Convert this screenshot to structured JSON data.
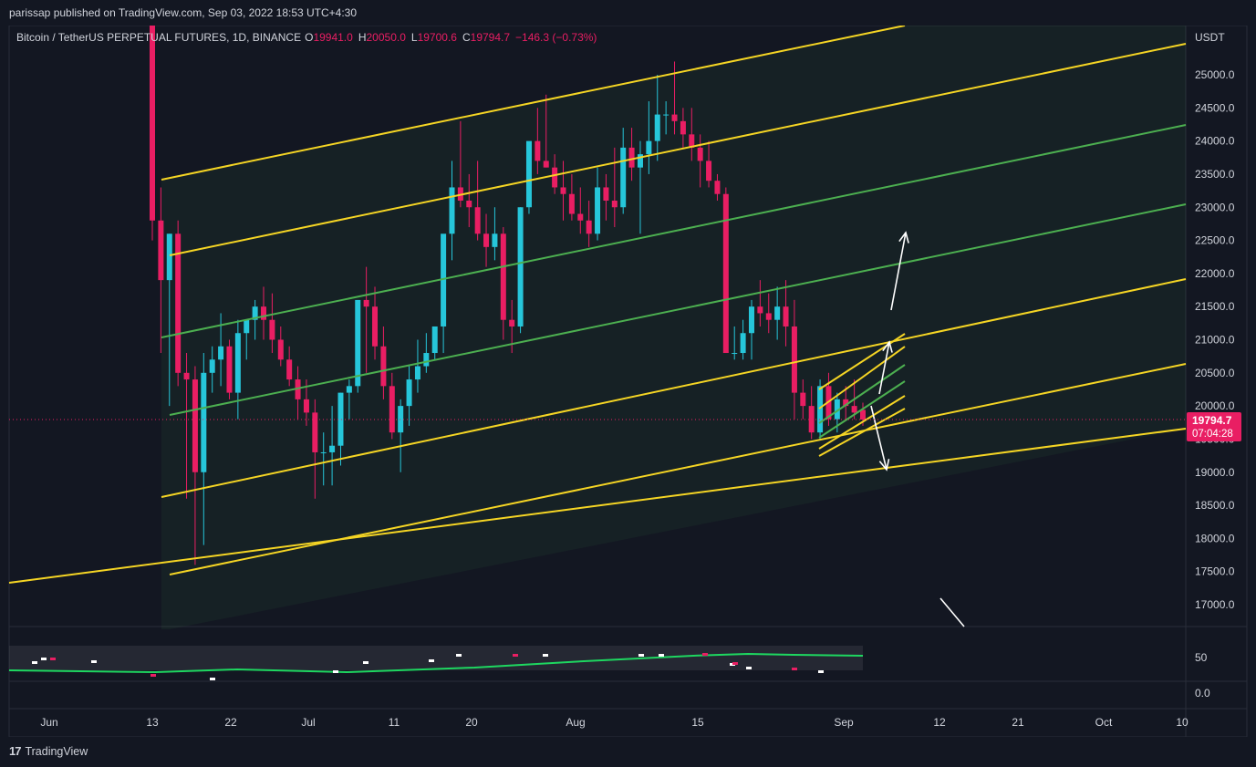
{
  "header": {
    "publisher_line": "parissap published on TradingView.com, Sep 03, 2022 18:53 UTC+4:30"
  },
  "legend": {
    "symbol": "Bitcoin / TetherUS PERPETUAL FUTURES, 1D, BINANCE",
    "o_label": "O",
    "o_value": "19941.0",
    "h_label": "H",
    "h_value": "20050.0",
    "l_label": "L",
    "l_value": "19700.6",
    "c_label": "C",
    "c_value": "19794.7",
    "change": "−146.3 (−0.73%)"
  },
  "price_axis": {
    "currency": "USDT",
    "last_price": "19794.7",
    "countdown": "07:04:28"
  },
  "indicator_axis": {
    "ticks": [
      "50",
      "0.0"
    ]
  },
  "footer": {
    "brand": "TradingView"
  },
  "colors": {
    "bull": "#26c6da",
    "bear": "#e91e63",
    "channel_yellow": "#f5d524",
    "channel_green": "#4caf50",
    "signal_green": "#1ed760",
    "background": "#131722"
  },
  "chart_data": {
    "type": "candlestick",
    "symbol": "BTCUSDT PERP",
    "timeframe": "1D",
    "y_range": [
      16800,
      26600
    ],
    "y_ticks": [
      17000,
      17500,
      18000,
      18500,
      19000,
      19500,
      20000,
      20500,
      21000,
      21500,
      22000,
      22500,
      23000,
      23500,
      24000,
      24500,
      25000
    ],
    "x_ticks": [
      "Jun",
      "13",
      "22",
      "Jul",
      "11",
      "20",
      "Aug",
      "15",
      "Sep",
      "12",
      "21",
      "Oct",
      "10"
    ],
    "candles_ohlc": [
      [
        29800,
        30000,
        22500,
        22800
      ],
      [
        22800,
        23300,
        20800,
        21900
      ],
      [
        21900,
        22600,
        20000,
        22600
      ],
      [
        22600,
        22800,
        20300,
        20500
      ],
      [
        20500,
        20800,
        18600,
        20400
      ],
      [
        20400,
        20600,
        17600,
        19000
      ],
      [
        19000,
        20800,
        17900,
        20500
      ],
      [
        20500,
        20900,
        20200,
        20700
      ],
      [
        20700,
        21400,
        20300,
        20900
      ],
      [
        20900,
        21000,
        20100,
        20200
      ],
      [
        20200,
        21300,
        19800,
        21100
      ],
      [
        21100,
        21300,
        20700,
        21300
      ],
      [
        21300,
        21600,
        21000,
        21500
      ],
      [
        21500,
        21800,
        21000,
        21300
      ],
      [
        21300,
        21700,
        20800,
        21000
      ],
      [
        21000,
        21200,
        20600,
        20700
      ],
      [
        20700,
        20900,
        20300,
        20400
      ],
      [
        20400,
        20600,
        19800,
        20100
      ],
      [
        20100,
        20400,
        19700,
        19900
      ],
      [
        19900,
        20100,
        18600,
        19300
      ],
      [
        19300,
        19600,
        18800,
        19300
      ],
      [
        19300,
        20000,
        18800,
        19400
      ],
      [
        19400,
        20200,
        19100,
        20200
      ],
      [
        20200,
        20400,
        19800,
        20300
      ],
      [
        20300,
        21600,
        20200,
        21600
      ],
      [
        21600,
        22100,
        20500,
        21500
      ],
      [
        21500,
        21800,
        20700,
        20900
      ],
      [
        20900,
        21200,
        20100,
        20300
      ],
      [
        20300,
        20500,
        19500,
        19600
      ],
      [
        19600,
        20100,
        19000,
        20000
      ],
      [
        20000,
        20600,
        19700,
        20400
      ],
      [
        20400,
        21000,
        20200,
        20600
      ],
      [
        20600,
        21100,
        20500,
        20800
      ],
      [
        20800,
        21000,
        20700,
        21200
      ],
      [
        21200,
        22500,
        20800,
        22600
      ],
      [
        22600,
        23700,
        22200,
        23300
      ],
      [
        23300,
        24300,
        23000,
        23100
      ],
      [
        23100,
        23500,
        22700,
        23000
      ],
      [
        23000,
        23700,
        22500,
        22600
      ],
      [
        22600,
        22900,
        22100,
        22400
      ],
      [
        22400,
        23000,
        22200,
        22600
      ],
      [
        22600,
        22700,
        21000,
        21300
      ],
      [
        21300,
        21600,
        20800,
        21200
      ],
      [
        21200,
        23000,
        21100,
        23000
      ],
      [
        23000,
        23900,
        22900,
        24000
      ],
      [
        24000,
        24500,
        23500,
        23700
      ],
      [
        23700,
        24700,
        23600,
        23600
      ],
      [
        23600,
        23800,
        23200,
        23300
      ],
      [
        23300,
        23700,
        22800,
        23200
      ],
      [
        23200,
        23500,
        22800,
        22900
      ],
      [
        22900,
        23300,
        22600,
        22800
      ],
      [
        22800,
        23100,
        22400,
        22600
      ],
      [
        22600,
        23600,
        22500,
        23300
      ],
      [
        23300,
        23500,
        22800,
        23100
      ],
      [
        23100,
        23900,
        22700,
        23000
      ],
      [
        23000,
        24200,
        22900,
        23900
      ],
      [
        23900,
        24200,
        23400,
        23600
      ],
      [
        23600,
        24000,
        22600,
        23800
      ],
      [
        23800,
        24600,
        23500,
        24000
      ],
      [
        24000,
        25000,
        23700,
        24400
      ],
      [
        24400,
        24600,
        24100,
        24400
      ],
      [
        24400,
        25200,
        24100,
        24300
      ],
      [
        24300,
        24500,
        23900,
        24100
      ],
      [
        24100,
        24500,
        23700,
        23900
      ],
      [
        23900,
        24100,
        23300,
        23700
      ],
      [
        23700,
        24000,
        23300,
        23400
      ],
      [
        23400,
        23500,
        23100,
        23200
      ],
      [
        23200,
        23300,
        20800,
        20800
      ],
      [
        20800,
        21200,
        20700,
        20800
      ],
      [
        20800,
        21300,
        20700,
        21100
      ],
      [
        21100,
        21600,
        20700,
        21500
      ],
      [
        21500,
        21900,
        21200,
        21400
      ],
      [
        21400,
        21700,
        21100,
        21300
      ],
      [
        21300,
        21800,
        21000,
        21500
      ],
      [
        21500,
        21900,
        20900,
        21200
      ],
      [
        21200,
        21600,
        19800,
        20200
      ],
      [
        20200,
        20400,
        19800,
        20000
      ],
      [
        20000,
        20300,
        19500,
        19600
      ],
      [
        19600,
        20400,
        19500,
        20300
      ],
      [
        20300,
        20500,
        19700,
        19800
      ],
      [
        19800,
        20200,
        19600,
        20100
      ],
      [
        20100,
        20300,
        19800,
        20000
      ],
      [
        20000,
        20400,
        19800,
        19900
      ],
      [
        19941.0,
        20050.0,
        19700.6,
        19794.7
      ]
    ],
    "overlay_lines": {
      "yellow_channel": [
        [
          [
            177,
            197
          ],
          [
            992,
            28
          ]
        ],
        [
          [
            177,
            545
          ],
          [
            1300,
            306
          ]
        ],
        [
          [
            186,
            630
          ],
          [
            1300,
            399
          ]
        ],
        [
          [
            10,
            639
          ],
          [
            1300,
            470
          ]
        ],
        [
          [
            186,
            280
          ],
          [
            1300,
            48
          ]
        ]
      ],
      "green_channel": [
        [
          [
            177,
            370
          ],
          [
            1300,
            137
          ]
        ],
        [
          [
            186,
            455
          ],
          [
            1300,
            224
          ]
        ]
      ]
    },
    "indicator": {
      "y_range": [
        0,
        100
      ],
      "ticks": [
        50,
        0
      ]
    }
  }
}
